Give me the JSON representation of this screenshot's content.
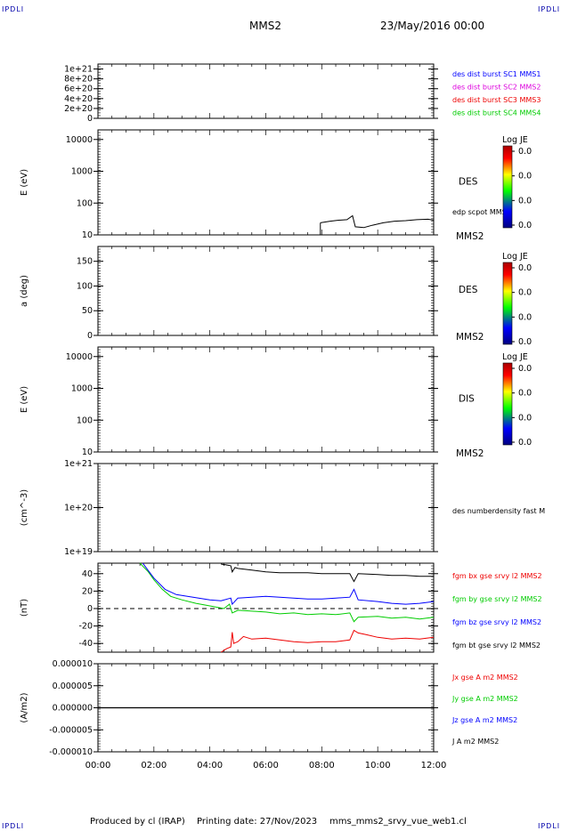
{
  "corner_tl": "IPDLI",
  "corner_tr": "IPDLI",
  "corner_bl": "IPDLI",
  "corner_br": "IPDLI",
  "header": {
    "spacecraft": "MMS2",
    "date": "23/May/2016 00:00"
  },
  "footer": {
    "produced": "Produced by cl (IRAP)",
    "printing": "Printing date: 27/Nov/2023",
    "file": "mms_mms2_srvy_vue_web1.cl"
  },
  "x_axis": {
    "min_hours": 0,
    "max_hours": 12,
    "ticks": [
      "00:00",
      "02:00",
      "04:00",
      "06:00",
      "08:00",
      "10:00",
      "12:00"
    ]
  },
  "colors": {
    "black": "#000000",
    "blue": "#0000ff",
    "magenta": "#dd00dd",
    "red": "#ee0000",
    "green": "#00cc00"
  },
  "chart_data": [
    {
      "type": "line",
      "panel": "burst",
      "ylim": [
        0,
        1.1e+21
      ],
      "ylabel": "",
      "tick_labels": [
        "1e+21",
        "8e+20",
        "6e+20",
        "4e+20",
        "2e+20",
        "0"
      ],
      "tick_values": [
        1e+21,
        8e+20,
        6e+20,
        4e+20,
        2e+20,
        0
      ],
      "zero_line": true,
      "legend": [
        {
          "label": "des dist burst SC1 MMS1",
          "color": "#0000ff"
        },
        {
          "label": "des dist burst SC2 MMS2",
          "color": "#dd00dd"
        },
        {
          "label": "des dist burst SC3 MMS3",
          "color": "#ee0000"
        },
        {
          "label": "des dist burst SC4 MMS4",
          "color": "#00cc00"
        }
      ]
    },
    {
      "type": "line",
      "panel": "des_energy",
      "scale": "log",
      "ylim": [
        10,
        20000
      ],
      "ylabel": "E (eV)",
      "tick_labels": [
        "10000",
        "1000",
        "100",
        "10"
      ],
      "tick_values": [
        10000,
        1000,
        100,
        10
      ],
      "label": "DES",
      "sublabel": "MMS2",
      "series_label": "edp scpot MMS2",
      "colorbar": {
        "title": "Log JE",
        "ticks": [
          "0.0",
          "0.0",
          "0.0",
          "0.0"
        ]
      },
      "scpot": {
        "start": 7.95,
        "end": 12.0,
        "base": 28,
        "points": [
          [
            7.95,
            24
          ],
          [
            8.3,
            27
          ],
          [
            8.6,
            29
          ],
          [
            8.9,
            30
          ],
          [
            9.1,
            40
          ],
          [
            9.2,
            18
          ],
          [
            9.5,
            17
          ],
          [
            9.8,
            20
          ],
          [
            10.2,
            24
          ],
          [
            10.6,
            27
          ],
          [
            11.0,
            28
          ],
          [
            11.4,
            30
          ],
          [
            11.8,
            31
          ],
          [
            12.0,
            29
          ]
        ]
      }
    },
    {
      "type": "line",
      "panel": "des_pitch",
      "ylim": [
        0,
        180
      ],
      "ylabel": "a (deg)",
      "tick_labels": [
        "150",
        "100",
        "50",
        "0"
      ],
      "tick_values": [
        150,
        100,
        50,
        0
      ],
      "label": "DES",
      "sublabel": "MMS2",
      "colorbar": {
        "title": "Log JE",
        "ticks": [
          "0.0",
          "0.0",
          "0.0",
          "0.0"
        ]
      }
    },
    {
      "type": "line",
      "panel": "dis_energy",
      "scale": "log",
      "ylim": [
        10,
        20000
      ],
      "ylabel": "E (eV)",
      "tick_labels": [
        "10000",
        "1000",
        "100",
        "10"
      ],
      "tick_values": [
        10000,
        1000,
        100,
        10
      ],
      "label": "DIS",
      "sublabel": "MMS2",
      "colorbar": {
        "title": "Log JE",
        "ticks": [
          "0.0",
          "0.0",
          "0.0",
          "0.0"
        ]
      }
    },
    {
      "type": "line",
      "panel": "density",
      "scale": "log",
      "ylim": [
        1e+19,
        1e+21
      ],
      "ylabel": "(cm^-3)",
      "tick_labels": [
        "1e+21",
        "1e+20",
        "1e+19"
      ],
      "tick_values": [
        1e+21,
        1e+20,
        1e+19
      ],
      "series_label": "des numberdensity fast M"
    },
    {
      "type": "line",
      "panel": "fgm",
      "ylim": [
        -50,
        52
      ],
      "ylabel": "(nT)",
      "tick_labels": [
        "40",
        "20",
        "0",
        "-20",
        "-40"
      ],
      "tick_values": [
        40,
        20,
        0,
        -20,
        -40
      ],
      "zero_line": true,
      "series": [
        {
          "name": "fgm bx gse srvy l2 MMS2",
          "color": "#ee0000",
          "points": [
            [
              4.4,
              -50
            ],
            [
              4.6,
              -46
            ],
            [
              4.75,
              -44
            ],
            [
              4.8,
              -27
            ],
            [
              4.85,
              -40
            ],
            [
              5.0,
              -38
            ],
            [
              5.2,
              -32
            ],
            [
              5.5,
              -35
            ],
            [
              6.0,
              -34
            ],
            [
              6.5,
              -36
            ],
            [
              7.0,
              -38
            ],
            [
              7.5,
              -39
            ],
            [
              8.0,
              -38
            ],
            [
              8.5,
              -38
            ],
            [
              9.0,
              -36
            ],
            [
              9.15,
              -25
            ],
            [
              9.3,
              -28
            ],
            [
              9.6,
              -30
            ],
            [
              10.0,
              -33
            ],
            [
              10.5,
              -35
            ],
            [
              11.0,
              -34
            ],
            [
              11.5,
              -35
            ],
            [
              12.0,
              -33
            ]
          ]
        },
        {
          "name": "fgm by gse srvy l2 MMS2",
          "color": "#00cc00",
          "points": [
            [
              1.5,
              52
            ],
            [
              1.8,
              42
            ],
            [
              2.0,
              33
            ],
            [
              2.3,
              22
            ],
            [
              2.6,
              14
            ],
            [
              3.0,
              10
            ],
            [
              3.5,
              6
            ],
            [
              4.0,
              3
            ],
            [
              4.5,
              0
            ],
            [
              4.7,
              5
            ],
            [
              4.8,
              -5
            ],
            [
              5.0,
              -2
            ],
            [
              5.5,
              -3
            ],
            [
              6.0,
              -4
            ],
            [
              6.5,
              -6
            ],
            [
              7.0,
              -5
            ],
            [
              7.5,
              -7
            ],
            [
              8.0,
              -6
            ],
            [
              8.5,
              -7
            ],
            [
              9.0,
              -5
            ],
            [
              9.15,
              -15
            ],
            [
              9.3,
              -10
            ],
            [
              10.0,
              -9
            ],
            [
              10.5,
              -11
            ],
            [
              11.0,
              -10
            ],
            [
              11.5,
              -12
            ],
            [
              12.0,
              -10
            ]
          ]
        },
        {
          "name": "fgm bz gse srvy l2 MMS2",
          "color": "#0000ff",
          "points": [
            [
              1.6,
              52
            ],
            [
              2.0,
              35
            ],
            [
              2.4,
              22
            ],
            [
              2.8,
              16
            ],
            [
              3.2,
              14
            ],
            [
              3.6,
              12
            ],
            [
              4.0,
              10
            ],
            [
              4.4,
              9
            ],
            [
              4.75,
              12
            ],
            [
              4.8,
              5
            ],
            [
              5.0,
              12
            ],
            [
              5.5,
              13
            ],
            [
              6.0,
              14
            ],
            [
              6.5,
              13
            ],
            [
              7.0,
              12
            ],
            [
              7.5,
              11
            ],
            [
              8.0,
              11
            ],
            [
              8.5,
              12
            ],
            [
              9.0,
              13
            ],
            [
              9.15,
              22
            ],
            [
              9.3,
              10
            ],
            [
              10.0,
              8
            ],
            [
              10.5,
              6
            ],
            [
              11.0,
              5
            ],
            [
              11.5,
              6
            ],
            [
              12.0,
              8
            ]
          ]
        },
        {
          "name": "fgm bt gse srvy l2 MMS2",
          "color": "#000000",
          "points": [
            [
              4.4,
              51
            ],
            [
              4.6,
              50
            ],
            [
              4.75,
              49
            ],
            [
              4.8,
              42
            ],
            [
              4.9,
              47
            ],
            [
              5.0,
              46
            ],
            [
              5.5,
              44
            ],
            [
              6.0,
              42
            ],
            [
              6.5,
              41
            ],
            [
              7.0,
              41
            ],
            [
              7.5,
              41
            ],
            [
              8.0,
              40
            ],
            [
              8.5,
              40
            ],
            [
              9.0,
              40
            ],
            [
              9.15,
              31
            ],
            [
              9.3,
              40
            ],
            [
              10.0,
              39
            ],
            [
              10.5,
              38
            ],
            [
              11.0,
              38
            ],
            [
              11.5,
              37
            ],
            [
              12.0,
              37
            ]
          ]
        }
      ]
    },
    {
      "type": "line",
      "panel": "current",
      "ylim": [
        -1e-05,
        1e-05
      ],
      "ylabel": "(A/m2)",
      "tick_labels": [
        "0.000010",
        "0.000005",
        "0.000000",
        "-0.000005",
        "-0.000010"
      ],
      "tick_values": [
        1e-05,
        5e-06,
        0,
        -5e-06,
        -1e-05
      ],
      "legend": [
        {
          "label": "Jx gse A m2 MMS2",
          "color": "#ee0000"
        },
        {
          "label": "Jy gse A m2 MMS2",
          "color": "#00cc00"
        },
        {
          "label": "Jz gse A m2 MMS2",
          "color": "#0000ff"
        },
        {
          "label": "J A m2 MMS2",
          "color": "#000000"
        }
      ]
    }
  ]
}
